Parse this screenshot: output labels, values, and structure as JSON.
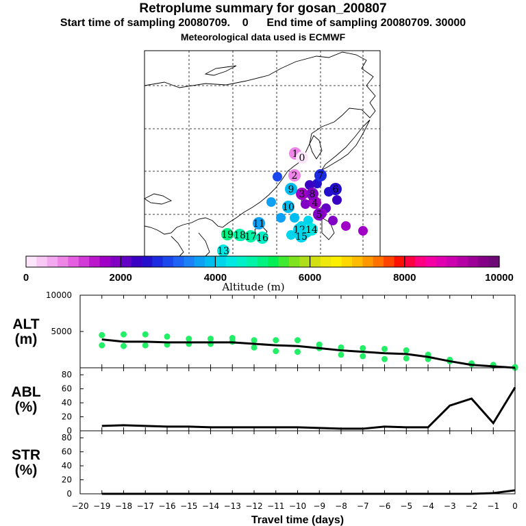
{
  "header": {
    "title": "Retroplume summary for gosan_200807",
    "start_label": "Start time of sampling 20080709.",
    "start_value": "0",
    "end_label": "End time of sampling 20080709. 30000",
    "met_label": "Meteorological data used is ECMWF"
  },
  "colorbar": {
    "axis_label": "Altitude (m)",
    "tick_labels": [
      "0",
      "2000",
      "4000",
      "6000",
      "8000",
      "10000"
    ],
    "range": [
      0,
      10000
    ],
    "colors": [
      "#fde6fb",
      "#f9c8f5",
      "#f4a8ef",
      "#ee86e8",
      "#e460e0",
      "#d23bd6",
      "#bb18cc",
      "#a000c6",
      "#8200c4",
      "#6200c6",
      "#3a00c4",
      "#2410cc",
      "#1c2be0",
      "#1b48ec",
      "#1d63f4",
      "#1c80f6",
      "#0ea0f3",
      "#00bdf0",
      "#00d5ec",
      "#00e8e2",
      "#00f0c8",
      "#00f4a8",
      "#00f280",
      "#00ee56",
      "#40ea30",
      "#7ee21c",
      "#aede18",
      "#d2e012",
      "#eee80c",
      "#fcf000",
      "#ffd800",
      "#ffbc00",
      "#ff9800",
      "#ff7200",
      "#ff4400",
      "#ff1000",
      "#ff0040",
      "#ff0080",
      "#f400a4",
      "#e000b0",
      "#cc00ae",
      "#b400a4",
      "#9c0096",
      "#840086",
      "#6e0a76"
    ]
  },
  "map": {
    "plume_points": [
      {
        "label": "1",
        "alt": 800
      },
      {
        "label": "0",
        "alt": 200
      },
      {
        "label": "2",
        "alt": 700
      },
      {
        "label": "3",
        "alt": 1600
      },
      {
        "label": "4",
        "alt": 1700
      },
      {
        "label": "5",
        "alt": 1800
      },
      {
        "label": "6",
        "alt": 2600
      },
      {
        "label": "7",
        "alt": 2700
      },
      {
        "label": "8",
        "alt": 1900
      },
      {
        "label": "9",
        "alt": 3800
      },
      {
        "label": "10",
        "alt": 3900
      },
      {
        "label": "11",
        "alt": 3600
      },
      {
        "label": "12",
        "alt": 4100
      },
      {
        "label": "13",
        "alt": 4400
      },
      {
        "label": "14",
        "alt": 4300
      },
      {
        "label": "15",
        "alt": 4200
      },
      {
        "label": "16",
        "alt": 4600
      },
      {
        "label": "17",
        "alt": 4700
      },
      {
        "label": "18",
        "alt": 4800
      },
      {
        "label": "19",
        "alt": 4900
      }
    ]
  },
  "chart_data": [
    {
      "type": "scatter+line",
      "panel": "altitude",
      "ylabel_top": "ALT",
      "ylabel_bottom": "(m)",
      "xlim": [
        -20,
        0
      ],
      "ylim": [
        0,
        10000
      ],
      "yticks": [
        5000,
        10000
      ],
      "ytick_labels": [
        "5000",
        "10000"
      ],
      "mean_line": {
        "x": [
          -19,
          -18,
          -17,
          -16,
          -15,
          -14,
          -13,
          -12,
          -11,
          -10,
          -9,
          -8,
          -7,
          -6,
          -5,
          -4,
          -3,
          -2,
          -1,
          0
        ],
        "y": [
          3900,
          3600,
          3600,
          3500,
          3500,
          3500,
          3500,
          3300,
          3100,
          3000,
          2700,
          2400,
          2200,
          2000,
          1900,
          1500,
          900,
          400,
          200,
          0
        ]
      },
      "clusters": [
        {
          "x": -19,
          "y": [
            4500,
            3100
          ]
        },
        {
          "x": -18,
          "y": [
            4600,
            3000
          ]
        },
        {
          "x": -17,
          "y": [
            4600,
            3100
          ]
        },
        {
          "x": -16,
          "y": [
            4300,
            3200
          ]
        },
        {
          "x": -15,
          "y": [
            4000,
            3300
          ]
        },
        {
          "x": -14,
          "y": [
            4000,
            3300
          ]
        },
        {
          "x": -13,
          "y": [
            4100,
            3600
          ]
        },
        {
          "x": -12,
          "y": [
            3800,
            2800
          ]
        },
        {
          "x": -11,
          "y": [
            3800,
            2300
          ]
        },
        {
          "x": -10,
          "y": [
            3800,
            2200
          ]
        },
        {
          "x": -9,
          "y": [
            3200,
            2700
          ]
        },
        {
          "x": -8,
          "y": [
            2800,
            1800
          ]
        },
        {
          "x": -7,
          "y": [
            2700,
            1600
          ]
        },
        {
          "x": -6,
          "y": [
            2600,
            1200
          ]
        },
        {
          "x": -5,
          "y": [
            2400,
            1300
          ]
        },
        {
          "x": -4,
          "y": [
            1800,
            1200
          ]
        },
        {
          "x": -3,
          "y": [
            1100,
            900
          ]
        },
        {
          "x": -2,
          "y": [
            600,
            500
          ]
        },
        {
          "x": -1,
          "y": [
            400,
            300
          ]
        },
        {
          "x": 0,
          "y": [
            100,
            0
          ]
        }
      ]
    },
    {
      "type": "line",
      "panel": "abl",
      "ylabel_top": "ABL",
      "ylabel_bottom": "(%)",
      "xlim": [
        -20,
        0
      ],
      "ylim": [
        0,
        90
      ],
      "yticks": [
        0,
        20,
        40,
        60,
        80
      ],
      "ytick_labels": [
        "0",
        "20",
        "40",
        "60",
        "80"
      ],
      "x": [
        -19,
        -18,
        -17,
        -16,
        -15,
        -14,
        -13,
        -12,
        -11,
        -10,
        -9,
        -8,
        -7,
        -6,
        -5,
        -4,
        -3,
        -2,
        -1,
        0
      ],
      "y": [
        7,
        8,
        7,
        6,
        6,
        5,
        5,
        5,
        5,
        5,
        4,
        3,
        3,
        6,
        5,
        5,
        36,
        46,
        11,
        62
      ]
    },
    {
      "type": "line",
      "panel": "str",
      "ylabel_top": "STR",
      "ylabel_bottom": "(%)",
      "xlabel": "Travel time (days)",
      "xlim": [
        -20,
        0
      ],
      "ylim": [
        0,
        90
      ],
      "yticks": [
        0,
        20,
        40,
        60,
        80
      ],
      "ytick_labels": [
        "0",
        "20",
        "40",
        "60",
        "80"
      ],
      "x": [
        -19,
        -18,
        -17,
        -16,
        -15,
        -14,
        -13,
        -12,
        -11,
        -10,
        -9,
        -8,
        -7,
        -6,
        -5,
        -4,
        -3,
        -2,
        -1,
        0
      ],
      "y": [
        0,
        0,
        0,
        0,
        0,
        0,
        0,
        0,
        0,
        0,
        0,
        0,
        0,
        0,
        0,
        0,
        0,
        0,
        1,
        5
      ],
      "xticks": [
        -20,
        -19,
        -18,
        -17,
        -16,
        -15,
        -14,
        -13,
        -12,
        -11,
        -10,
        -9,
        -8,
        -7,
        -6,
        -5,
        -4,
        -3,
        -2,
        -1,
        0
      ],
      "xtick_labels": [
        "−20",
        "−19",
        "−18",
        "−17",
        "−16",
        "−15",
        "−14",
        "−13",
        "−12",
        "−11",
        "−10",
        "−9",
        "−8",
        "−7",
        "−6",
        "−5",
        "−4",
        "−3",
        "−2",
        "−1",
        "0"
      ]
    }
  ]
}
